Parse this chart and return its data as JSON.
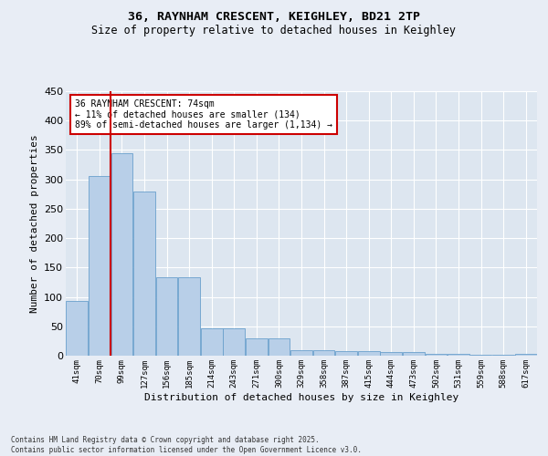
{
  "title_line1": "36, RAYNHAM CRESCENT, KEIGHLEY, BD21 2TP",
  "title_line2": "Size of property relative to detached houses in Keighley",
  "xlabel": "Distribution of detached houses by size in Keighley",
  "ylabel": "Number of detached properties",
  "categories": [
    "41sqm",
    "70sqm",
    "99sqm",
    "127sqm",
    "156sqm",
    "185sqm",
    "214sqm",
    "243sqm",
    "271sqm",
    "300sqm",
    "329sqm",
    "358sqm",
    "387sqm",
    "415sqm",
    "444sqm",
    "473sqm",
    "502sqm",
    "531sqm",
    "559sqm",
    "588sqm",
    "617sqm"
  ],
  "values": [
    93,
    305,
    345,
    280,
    133,
    133,
    46,
    46,
    30,
    30,
    10,
    10,
    8,
    8,
    6,
    6,
    3,
    3,
    1,
    1,
    3
  ],
  "bar_color": "#b8cfe8",
  "bar_edge_color": "#6aa0cc",
  "vline_color": "#cc0000",
  "annotation_title": "36 RAYNHAM CRESCENT: 74sqm",
  "annotation_line2": "← 11% of detached houses are smaller (134)",
  "annotation_line3": "89% of semi-detached houses are larger (1,134) →",
  "annotation_box_color": "#ffffff",
  "annotation_box_edge": "#cc0000",
  "ylim": [
    0,
    450
  ],
  "yticks": [
    0,
    50,
    100,
    150,
    200,
    250,
    300,
    350,
    400,
    450
  ],
  "bg_color": "#dde6f0",
  "grid_color": "#ffffff",
  "footer_line1": "Contains HM Land Registry data © Crown copyright and database right 2025.",
  "footer_line2": "Contains public sector information licensed under the Open Government Licence v3.0."
}
